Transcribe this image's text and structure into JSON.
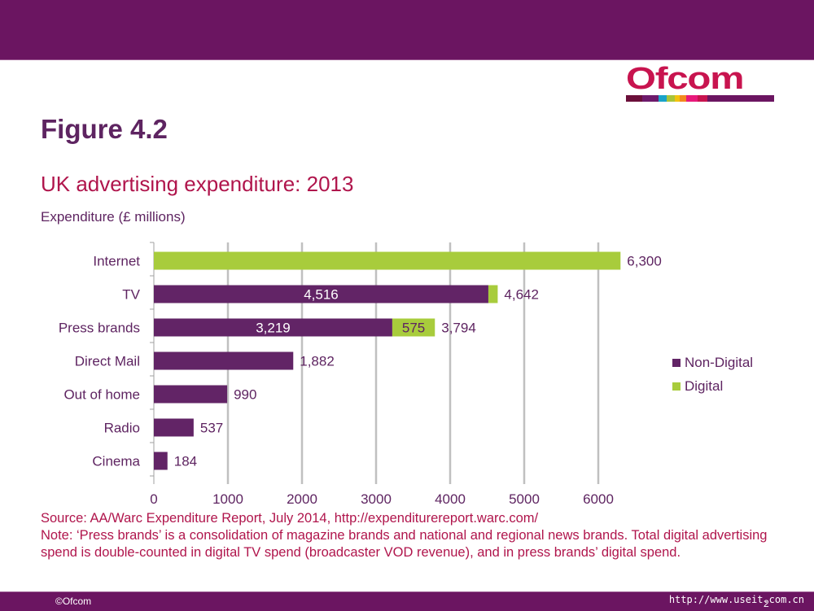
{
  "slide": {
    "figure_title": "Figure 4.2",
    "subtitle": "UK advertising expenditure: 2013",
    "unit_label": "Expenditure (£ millions)",
    "logo_text": "Ofcom",
    "logo_stripe_colors": [
      "#6b0f3a",
      "#6d1a6b",
      "#1aa3c8",
      "#a8c43a",
      "#f2c20f",
      "#f28a1e",
      "#e8197b",
      "#c8144f",
      "#6b1561"
    ],
    "source": "Source: AA/Warc Expenditure Report, July 2014, http://expenditurereport.warc.com/",
    "note": "Note: ‘Press brands’ is a consolidation of magazine brands and national and regional news brands. Total digital advertising spend is double-counted in digital TV spend (broadcaster VOD revenue), and in press brands’ digital spend.",
    "footer_left": "©Ofcom",
    "footer_url": "http://www.useit.com.cn",
    "page_number": "2",
    "brand_color": "#6b1561",
    "accent_color": "#b0154c"
  },
  "chart_data": {
    "type": "bar",
    "orientation": "horizontal",
    "stacked": true,
    "title": "UK advertising expenditure: 2013",
    "xlabel": "",
    "ylabel": "Expenditure (£ millions)",
    "categories": [
      "Internet",
      "TV",
      "Press brands",
      "Direct Mail",
      "Out of home",
      "Radio",
      "Cinema"
    ],
    "series": [
      {
        "name": "Non-Digital",
        "color": "#622466",
        "values": [
          0,
          4516,
          3219,
          1882,
          990,
          537,
          184
        ]
      },
      {
        "name": "Digital",
        "color": "#a8cc3c",
        "values": [
          6300,
          126,
          575,
          0,
          0,
          0,
          0
        ]
      }
    ],
    "inner_labels": [
      {
        "category": "TV",
        "series": "Non-Digital",
        "text": "4,516"
      },
      {
        "category": "Press brands",
        "series": "Non-Digital",
        "text": "3,219"
      },
      {
        "category": "Press brands",
        "series": "Digital",
        "text": "575"
      }
    ],
    "total_labels": [
      "6,300",
      "4,642",
      "3,794",
      "1,882",
      "990",
      "537",
      "184"
    ],
    "xlim": [
      0,
      7000
    ],
    "xticks": [
      0,
      1000,
      2000,
      3000,
      4000,
      5000,
      6000
    ],
    "xtick_labels": [
      "0",
      "1000",
      "2000",
      "3000",
      "4000",
      "5000",
      "6000"
    ],
    "grid": "vertical",
    "legend": {
      "position": "right",
      "entries": [
        "Non-Digital",
        "Digital"
      ]
    }
  }
}
